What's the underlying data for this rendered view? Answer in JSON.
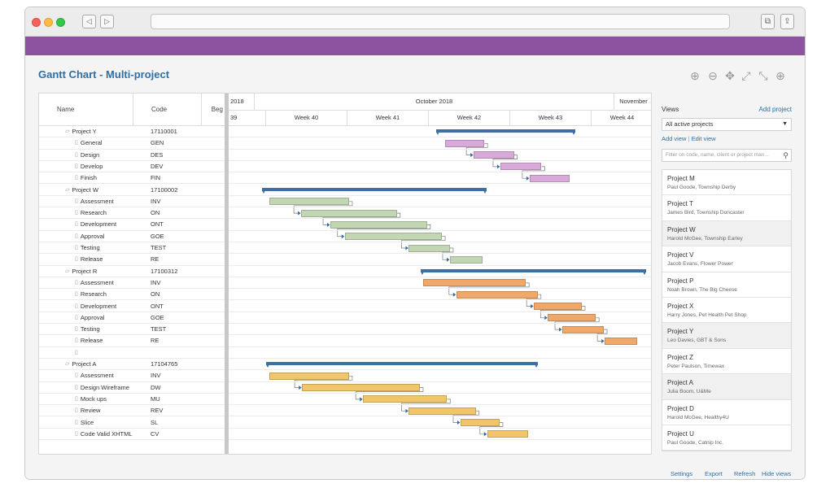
{
  "page": {
    "title": "Gantt Chart - Multi-project"
  },
  "browser": {
    "back_glyph": "◁",
    "forward_glyph": "▷",
    "tabs_glyph": "⧉",
    "share_glyph": "⇪"
  },
  "toolbar": [
    {
      "name": "zoom-in-icon",
      "glyph": "⊕"
    },
    {
      "name": "zoom-out-icon",
      "glyph": "⊖"
    },
    {
      "name": "pan-icon",
      "glyph": "✥"
    },
    {
      "name": "expand-icon",
      "glyph": "⤢"
    },
    {
      "name": "collapse-icon",
      "glyph": "⤡"
    },
    {
      "name": "add-icon",
      "glyph": "⊕"
    }
  ],
  "grid": {
    "headers": {
      "name": "Name",
      "code": "Code",
      "begin": "Beg"
    },
    "rows": [
      {
        "name": "Project Y",
        "code": "17110001",
        "group": true
      },
      {
        "name": "General",
        "code": "GEN"
      },
      {
        "name": "Design",
        "code": "DES"
      },
      {
        "name": "Develop",
        "code": "DEV"
      },
      {
        "name": "Finish",
        "code": "FIN"
      },
      {
        "name": "Project W",
        "code": "17100002",
        "group": true
      },
      {
        "name": "Assessment",
        "code": "INV"
      },
      {
        "name": "Research",
        "code": "ON"
      },
      {
        "name": "Development",
        "code": "ONT"
      },
      {
        "name": "Approval",
        "code": "GOE"
      },
      {
        "name": "Testing",
        "code": "TEST"
      },
      {
        "name": "Release",
        "code": "RE"
      },
      {
        "name": "Project R",
        "code": "17100312",
        "group": true
      },
      {
        "name": "Assessment",
        "code": "INV"
      },
      {
        "name": "Research",
        "code": "ON"
      },
      {
        "name": "Development",
        "code": "ONT"
      },
      {
        "name": "Approval",
        "code": "GOE"
      },
      {
        "name": "Testing",
        "code": "TEST"
      },
      {
        "name": "Release",
        "code": "RE"
      },
      {
        "name": "",
        "code": ""
      },
      {
        "name": "Project A",
        "code": "17104765",
        "group": true
      },
      {
        "name": "Assessment",
        "code": "INV"
      },
      {
        "name": "Design Wireframe",
        "code": "DW"
      },
      {
        "name": "Mock ups",
        "code": "MU"
      },
      {
        "name": "Review",
        "code": "REV"
      },
      {
        "name": "Slice",
        "code": "SL"
      },
      {
        "name": "Code Valid XHTML",
        "code": "CV"
      }
    ]
  },
  "timeline": {
    "years": [
      "2018",
      "October 2018",
      "November"
    ],
    "weeks": [
      "39",
      "Week 40",
      "Week 41",
      "Week 42",
      "Week 43",
      "Week 44"
    ]
  },
  "tasks": [
    {
      "row": 0,
      "start": 0.489,
      "end": 0.818,
      "type": "summary"
    },
    {
      "row": 1,
      "start": 0.51,
      "end": 0.603,
      "color": "#d9a9d9"
    },
    {
      "row": 2,
      "start": 0.578,
      "end": 0.673,
      "color": "#d9a9d9"
    },
    {
      "row": 3,
      "start": 0.641,
      "end": 0.738,
      "color": "#d9a9d9"
    },
    {
      "row": 4,
      "start": 0.71,
      "end": 0.804,
      "color": "#d9a9d9"
    },
    {
      "row": 5,
      "start": 0.079,
      "end": 0.608,
      "type": "summary"
    },
    {
      "row": 6,
      "start": 0.096,
      "end": 0.284,
      "color": "#c2d6b4"
    },
    {
      "row": 7,
      "start": 0.171,
      "end": 0.397,
      "color": "#c2d6b4"
    },
    {
      "row": 8,
      "start": 0.24,
      "end": 0.468,
      "color": "#c2d6b4"
    },
    {
      "row": 9,
      "start": 0.274,
      "end": 0.503,
      "color": "#c2d6b4"
    },
    {
      "row": 10,
      "start": 0.425,
      "end": 0.522,
      "color": "#c2d6b4"
    },
    {
      "row": 11,
      "start": 0.522,
      "end": 0.599,
      "color": "#c2d6b4"
    },
    {
      "row": 12,
      "start": 0.453,
      "end": 0.984,
      "type": "summary"
    },
    {
      "row": 13,
      "start": 0.459,
      "end": 0.701,
      "color": "#f0a86a"
    },
    {
      "row": 14,
      "start": 0.537,
      "end": 0.729,
      "color": "#f0a86a"
    },
    {
      "row": 15,
      "start": 0.72,
      "end": 0.833,
      "color": "#f0a86a"
    },
    {
      "row": 16,
      "start": 0.753,
      "end": 0.866,
      "color": "#f0a86a"
    },
    {
      "row": 17,
      "start": 0.787,
      "end": 0.885,
      "color": "#f0a86a"
    },
    {
      "row": 18,
      "start": 0.887,
      "end": 0.964,
      "color": "#f0a86a"
    },
    {
      "row": 20,
      "start": 0.089,
      "end": 0.729,
      "type": "summary"
    },
    {
      "row": 21,
      "start": 0.096,
      "end": 0.284,
      "color": "#f1c56a"
    },
    {
      "row": 22,
      "start": 0.173,
      "end": 0.451,
      "color": "#f1c56a"
    },
    {
      "row": 23,
      "start": 0.317,
      "end": 0.515,
      "color": "#f1c56a"
    },
    {
      "row": 24,
      "start": 0.425,
      "end": 0.583,
      "color": "#f1c56a"
    },
    {
      "row": 25,
      "start": 0.547,
      "end": 0.639,
      "color": "#f1c56a"
    },
    {
      "row": 26,
      "start": 0.61,
      "end": 0.707,
      "color": "#f1c56a"
    }
  ],
  "sidebar": {
    "views_label": "Views",
    "add_project": "Add project",
    "selected_view": "All active projects",
    "add_view": "Add view",
    "edit_view": "Edit view",
    "filter_placeholder": "Filter on code, name, client or project man...",
    "projects": [
      {
        "name": "Project M",
        "client": "Paul Goode, Township Derby",
        "selected": false
      },
      {
        "name": "Project T",
        "client": "James Bird, Township Doncaster",
        "selected": false
      },
      {
        "name": "Project W",
        "client": "Harold McGee, Township Earley",
        "selected": true
      },
      {
        "name": "Project V",
        "client": "Jacob Evans, Flower Power",
        "selected": false
      },
      {
        "name": "Project P",
        "client": "Noah Brown, The Big Cheese",
        "selected": false
      },
      {
        "name": "Project X",
        "client": "Harry Jones, Pet Health Pet Shop",
        "selected": false
      },
      {
        "name": "Project Y",
        "client": "Leo Davies, GBT & Sons",
        "selected": true
      },
      {
        "name": "Project Z",
        "client": "Peter Paulson, Timewax",
        "selected": false
      },
      {
        "name": "Project A",
        "client": "Julia Boom, U&Me",
        "selected": true
      },
      {
        "name": "Project D",
        "client": "Harold McGee, Healthy4U",
        "selected": false
      },
      {
        "name": "Project U",
        "client": "Paul Goode, Catnip Inc.",
        "selected": false
      }
    ]
  },
  "footer": {
    "settings": "Settings",
    "export": "Export",
    "refresh": "Refresh",
    "hide_views": "Hide views"
  }
}
